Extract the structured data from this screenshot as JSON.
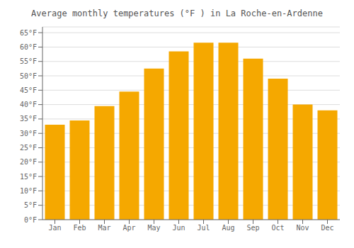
{
  "chart_data": {
    "type": "bar",
    "title": "Average monthly temperatures (°F ) in La Roche-en-Ardenne",
    "categories": [
      "Jan",
      "Feb",
      "Mar",
      "Apr",
      "May",
      "Jun",
      "Jul",
      "Aug",
      "Sep",
      "Oct",
      "Nov",
      "Dec"
    ],
    "values": [
      33,
      34.5,
      39.5,
      44.5,
      52.5,
      58.5,
      61.5,
      61.5,
      56,
      49,
      40,
      38
    ],
    "color": "#F5A800",
    "ylim": [
      0,
      67
    ],
    "yticks": [
      {
        "value": 0,
        "label": "0°F"
      },
      {
        "value": 5,
        "label": "5°F"
      },
      {
        "value": 10,
        "label": "10°F"
      },
      {
        "value": 15,
        "label": "15°F"
      },
      {
        "value": 20,
        "label": "20°F"
      },
      {
        "value": 25,
        "label": "25°F"
      },
      {
        "value": 30,
        "label": "30°F"
      },
      {
        "value": 35,
        "label": "35°F"
      },
      {
        "value": 40,
        "label": "40°F"
      },
      {
        "value": 45,
        "label": "45°F"
      },
      {
        "value": 50,
        "label": "50°F"
      },
      {
        "value": 55,
        "label": "55°F"
      },
      {
        "value": 60,
        "label": "60°F"
      },
      {
        "value": 65,
        "label": "65°F"
      }
    ],
    "grid": true
  }
}
